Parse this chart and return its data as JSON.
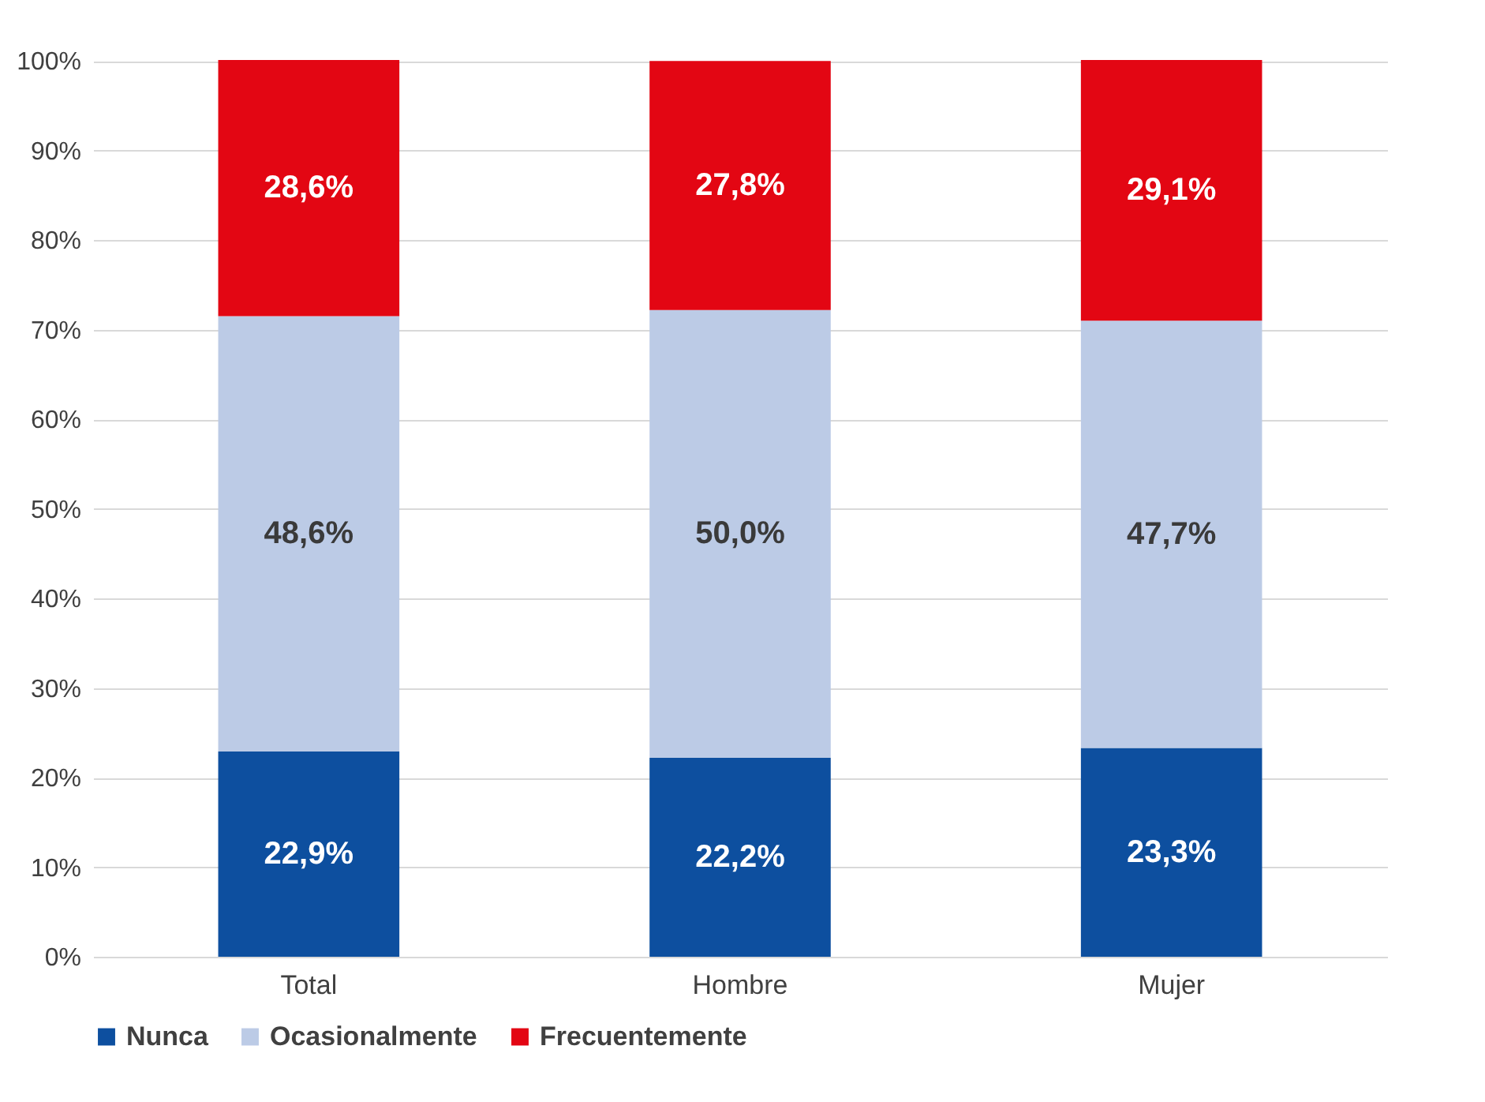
{
  "chart_data": {
    "type": "bar",
    "stacked": true,
    "categories": [
      "Total",
      "Hombre",
      "Mujer"
    ],
    "series": [
      {
        "name": "Nunca",
        "color": "#0d4f9f",
        "values": [
          22.9,
          22.2,
          23.3
        ],
        "value_labels": [
          "22,9%",
          "22,2%",
          "23,3%"
        ]
      },
      {
        "name": "Ocasionalmente",
        "color": "#bccbe6",
        "values": [
          48.6,
          50.0,
          47.7
        ],
        "value_labels": [
          "48,6%",
          "50,0%",
          "47,7%"
        ]
      },
      {
        "name": "Frecuentemente",
        "color": "#e30613",
        "values": [
          28.6,
          27.8,
          29.1
        ],
        "value_labels": [
          "28,6%",
          "27,8%",
          "29,1%"
        ]
      }
    ],
    "ylim": [
      0,
      100.1
    ],
    "yticks": [
      {
        "value": 0,
        "label": "0%"
      },
      {
        "value": 10,
        "label": "10%"
      },
      {
        "value": 20,
        "label": "20%"
      },
      {
        "value": 30,
        "label": "30%"
      },
      {
        "value": 40,
        "label": "40%"
      },
      {
        "value": 50,
        "label": "50%"
      },
      {
        "value": 60,
        "label": "60%"
      },
      {
        "value": 70,
        "label": "70%"
      },
      {
        "value": 80,
        "label": "80%"
      },
      {
        "value": 90,
        "label": "90%"
      },
      {
        "value": 100,
        "label": "100%"
      }
    ],
    "grid": "y",
    "legend": "bottom"
  }
}
